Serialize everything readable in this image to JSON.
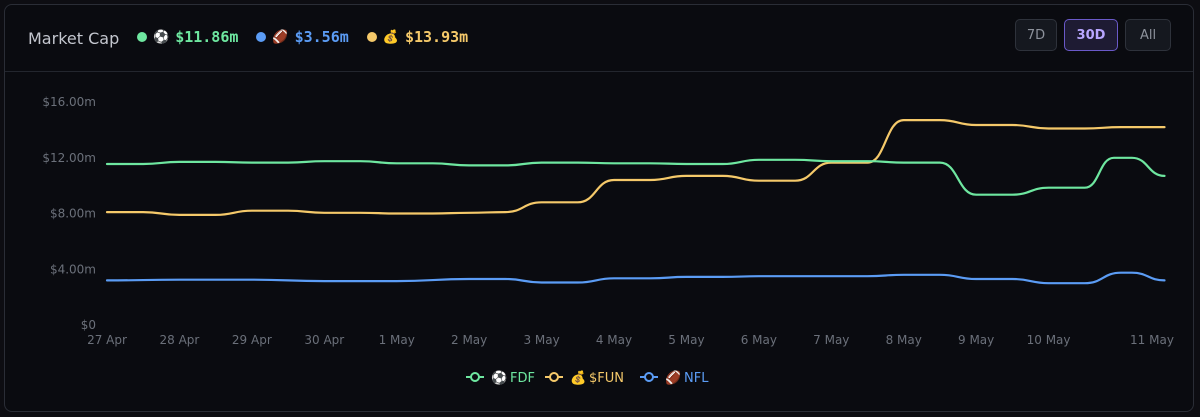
{
  "header": {
    "title": "Market Cap",
    "stats": [
      {
        "emoji": "⚽",
        "value": "$11.86m",
        "color": "#6ee7a0"
      },
      {
        "emoji": "🏈",
        "value": "$3.56m",
        "color": "#5b9cf5"
      },
      {
        "emoji": "💰",
        "value": "$13.93m",
        "color": "#f5c96a"
      }
    ],
    "range_buttons": [
      {
        "label": "7D",
        "active": false
      },
      {
        "label": "30D",
        "active": true
      },
      {
        "label": "All",
        "active": false
      }
    ]
  },
  "chart_data": {
    "type": "line",
    "title": "",
    "xlabel": "",
    "ylabel": "",
    "ylim": [
      0,
      16
    ],
    "y_ticks": [
      {
        "value": 0,
        "label": "$0"
      },
      {
        "value": 4,
        "label": "$4.00m"
      },
      {
        "value": 8,
        "label": "$8.00m"
      },
      {
        "value": 12,
        "label": "$12.00m"
      },
      {
        "value": 16,
        "label": "$16.00m"
      }
    ],
    "x_ticks": [
      {
        "value": 0,
        "label": "27 Apr"
      },
      {
        "value": 1,
        "label": "28 Apr"
      },
      {
        "value": 2,
        "label": "29 Apr"
      },
      {
        "value": 3,
        "label": "30 Apr"
      },
      {
        "value": 4,
        "label": "1 May"
      },
      {
        "value": 5,
        "label": "2 May"
      },
      {
        "value": 6,
        "label": "3 May"
      },
      {
        "value": 7,
        "label": "4 May"
      },
      {
        "value": 8,
        "label": "5 May"
      },
      {
        "value": 9,
        "label": "6 May"
      },
      {
        "value": 10,
        "label": "7 May"
      },
      {
        "value": 11,
        "label": "8 May"
      },
      {
        "value": 12,
        "label": "9 May"
      },
      {
        "value": 13,
        "label": "10 May"
      },
      {
        "value": 14,
        "label": "11 May"
      }
    ],
    "xlim": [
      0,
      14
    ],
    "grid": false,
    "legend_position": "bottom",
    "series": [
      {
        "name": "FDF",
        "emoji": "⚽",
        "color": "#6ee7a0",
        "points": [
          [
            0,
            11.55
          ],
          [
            0.5,
            11.55
          ],
          [
            1,
            11.7
          ],
          [
            1.5,
            11.7
          ],
          [
            2,
            11.65
          ],
          [
            2.5,
            11.65
          ],
          [
            3,
            11.75
          ],
          [
            3.5,
            11.75
          ],
          [
            4,
            11.6
          ],
          [
            4.5,
            11.6
          ],
          [
            5,
            11.45
          ],
          [
            5.5,
            11.45
          ],
          [
            6,
            11.65
          ],
          [
            6.5,
            11.65
          ],
          [
            7,
            11.6
          ],
          [
            7.5,
            11.6
          ],
          [
            8,
            11.55
          ],
          [
            8.5,
            11.55
          ],
          [
            9,
            11.85
          ],
          [
            9.5,
            11.85
          ],
          [
            10,
            11.75
          ],
          [
            10.5,
            11.75
          ],
          [
            11,
            11.65
          ],
          [
            11.5,
            11.65
          ],
          [
            12,
            9.35
          ],
          [
            12.5,
            9.35
          ],
          [
            13,
            9.85
          ],
          [
            13.5,
            9.85
          ],
          [
            13.9,
            12.0
          ],
          [
            14.15,
            12.0
          ],
          [
            14.6,
            10.7
          ]
        ]
      },
      {
        "name": "$FUN",
        "emoji": "💰",
        "color": "#f5c96a",
        "points": [
          [
            0,
            8.1
          ],
          [
            0.5,
            8.1
          ],
          [
            1,
            7.9
          ],
          [
            1.5,
            7.9
          ],
          [
            2,
            8.2
          ],
          [
            2.5,
            8.2
          ],
          [
            3,
            8.05
          ],
          [
            3.5,
            8.05
          ],
          [
            4,
            8.0
          ],
          [
            4.5,
            8.0
          ],
          [
            5,
            8.05
          ],
          [
            5.5,
            8.1
          ],
          [
            6,
            8.8
          ],
          [
            6.5,
            8.8
          ],
          [
            7,
            10.4
          ],
          [
            7.5,
            10.4
          ],
          [
            8,
            10.7
          ],
          [
            8.5,
            10.7
          ],
          [
            9,
            10.35
          ],
          [
            9.5,
            10.35
          ],
          [
            10,
            11.65
          ],
          [
            10.5,
            11.65
          ],
          [
            11,
            14.7
          ],
          [
            11.5,
            14.7
          ],
          [
            12,
            14.35
          ],
          [
            12.5,
            14.35
          ],
          [
            13,
            14.1
          ],
          [
            13.5,
            14.1
          ],
          [
            14,
            14.2
          ],
          [
            14.6,
            14.2
          ]
        ]
      },
      {
        "name": "NFL",
        "emoji": "🏈",
        "color": "#5b9cf5",
        "points": [
          [
            0,
            3.2
          ],
          [
            1,
            3.25
          ],
          [
            2,
            3.25
          ],
          [
            3,
            3.15
          ],
          [
            4,
            3.15
          ],
          [
            5,
            3.3
          ],
          [
            5.5,
            3.3
          ],
          [
            6,
            3.05
          ],
          [
            6.5,
            3.05
          ],
          [
            7,
            3.35
          ],
          [
            7.5,
            3.35
          ],
          [
            8,
            3.45
          ],
          [
            8.5,
            3.45
          ],
          [
            9,
            3.5
          ],
          [
            10,
            3.5
          ],
          [
            10.5,
            3.5
          ],
          [
            11,
            3.6
          ],
          [
            11.5,
            3.6
          ],
          [
            12,
            3.3
          ],
          [
            12.5,
            3.3
          ],
          [
            13,
            3.0
          ],
          [
            13.5,
            3.0
          ],
          [
            14,
            3.75
          ],
          [
            14.15,
            3.75
          ],
          [
            14.6,
            3.2
          ]
        ]
      }
    ]
  }
}
